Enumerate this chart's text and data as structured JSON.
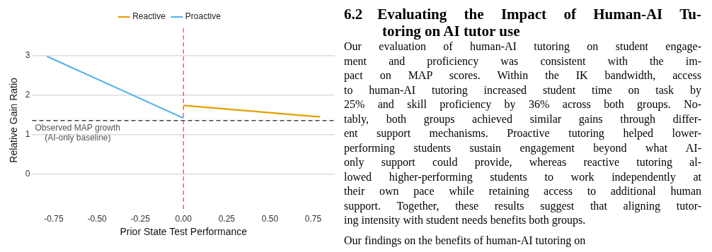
{
  "chart_data": [
    {
      "type": "line",
      "xlabel": "Prior State Test Performance",
      "ylabel": "Relative Gain Ratio",
      "series": [
        {
          "name": "Reactive",
          "color": "#e69f00",
          "x": [
            0,
            0.79
          ],
          "values": [
            1.74,
            1.45
          ]
        },
        {
          "name": "Proactive",
          "color": "#56b4e9",
          "x": [
            -0.79,
            0
          ],
          "values": [
            2.99,
            1.42
          ]
        }
      ],
      "xlim": [
        -0.875,
        0.875
      ],
      "xticks": [
        {
          "value": -0.75,
          "label": "-0.75"
        },
        {
          "value": -0.5,
          "label": "-0.50"
        },
        {
          "value": -0.25,
          "label": "-0.25"
        },
        {
          "value": 0,
          "label": "0.00"
        },
        {
          "value": 0.25,
          "label": "0.25"
        },
        {
          "value": 0.5,
          "label": "0.50"
        },
        {
          "value": 0.75,
          "label": "0.75"
        }
      ],
      "ylim": [
        -0.97,
        3.7
      ],
      "yticks": [
        0,
        1,
        2,
        3
      ],
      "ref_lines": [
        {
          "axis": "x",
          "value": 0,
          "color": "#c9777a",
          "line_style": "dashed"
        },
        {
          "axis": "y",
          "value": 1.36,
          "label": "Observed MAP growth\n(AI-only baseline)",
          "color": "#444444",
          "line_style": "dashed"
        }
      ],
      "grid": "y",
      "legend": "top",
      "marker": "none",
      "line_style": "solid"
    },
    {
      "type": "other",
      "title": "6.2 Evaluating the Impact of Human-AI Tu-\ntoring on AI tutor use",
      "annotations": [
        "Our evaluation of human-AI tutoring on student engage-",
        "ment and proficiency was consistent with the im-",
        "pact on MAP scores.  Within the IK bandwidth, access",
        "to human-AI tutoring increased student time on task by",
        "25% and skill proficiency by 36% across both groups.  No-",
        "tably, both groups achieved similar gains through differ-",
        "ent support mechanisms.  Proactive tutoring helped lower-",
        "performing students sustain engagement beyond what AI-",
        "only support could provide, whereas reactive tutoring al-",
        "lowed higher-performing students to work independently at",
        "their own pace while retaining access to additional human",
        "support. Together, these results suggest that aligning tutor-",
        "ing intensity with student needs benefits both groups.",
        "Our findings on the benefits of human-AI tutoring on"
      ]
    }
  ]
}
